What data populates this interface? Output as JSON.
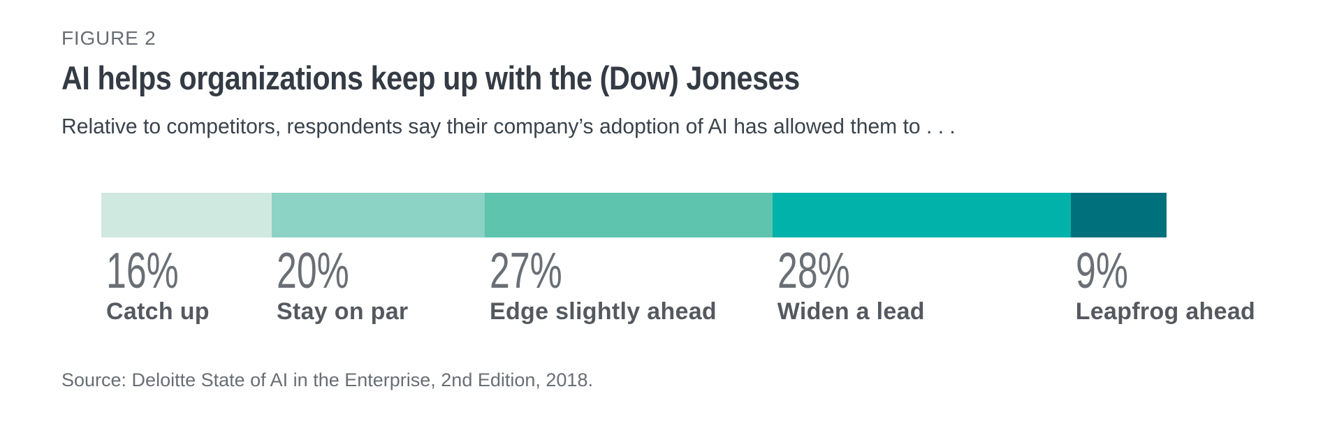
{
  "figure": {
    "label": "FIGURE 2",
    "title": "AI helps organizations keep up with the (Dow) Joneses",
    "subtitle": "Relative to competitors, respondents say their company’s adoption of AI has allowed them to . . .",
    "source": "Source: Deloitte State of AI in the Enterprise, 2nd Edition, 2018."
  },
  "chart_data": {
    "type": "bar",
    "subtype": "horizontal-stacked-100-percent",
    "title": "AI helps organizations keep up with the (Dow) Joneses",
    "categories": [
      "Catch up",
      "Stay on par",
      "Edge slightly ahead",
      "Widen a lead",
      "Leapfrog ahead"
    ],
    "values": [
      16,
      20,
      27,
      28,
      9
    ],
    "value_labels": [
      "16%",
      "20%",
      "27%",
      "28%",
      "9%"
    ],
    "colors": [
      "#d0e9e0",
      "#8cd2c5",
      "#5fc4ad",
      "#00b2a9",
      "#00707d"
    ],
    "xlabel": "",
    "ylabel": "",
    "xlim": [
      0,
      100
    ],
    "grid": false,
    "legend": "none",
    "label_position": "below-segment-left-aligned",
    "text_colors": {
      "figure_label": "#686d73",
      "title": "#343b44",
      "subtitle": "#3a434c",
      "value_label": "#6a6f75",
      "category_label": "#55595f",
      "source": "#696e74"
    }
  }
}
